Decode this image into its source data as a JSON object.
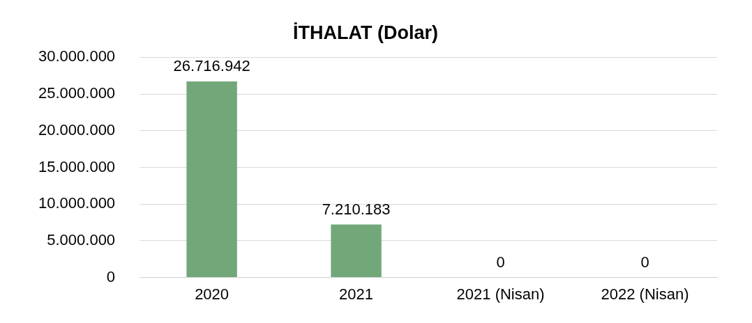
{
  "chart_data": {
    "type": "bar",
    "title": "İTHALAT (Dolar)",
    "categories": [
      "2020",
      "2021",
      "2021 (Nisan)",
      "2022 (Nisan)"
    ],
    "values": [
      26716942,
      7210183,
      0,
      0
    ],
    "color": "#72a77a",
    "value_labels": [
      "26.716.942",
      "7.210.183",
      "0",
      "0"
    ],
    "ylim": [
      0,
      30000000
    ],
    "yticks": [
      {
        "value": 0,
        "label": "0"
      },
      {
        "value": 5000000,
        "label": "5.000.000"
      },
      {
        "value": 10000000,
        "label": "10.000.000"
      },
      {
        "value": 15000000,
        "label": "15.000.000"
      },
      {
        "value": 20000000,
        "label": "20.000.000"
      },
      {
        "value": 25000000,
        "label": "25.000.000"
      },
      {
        "value": 30000000,
        "label": "30.000.000"
      }
    ],
    "grid": "y",
    "legend": false
  }
}
